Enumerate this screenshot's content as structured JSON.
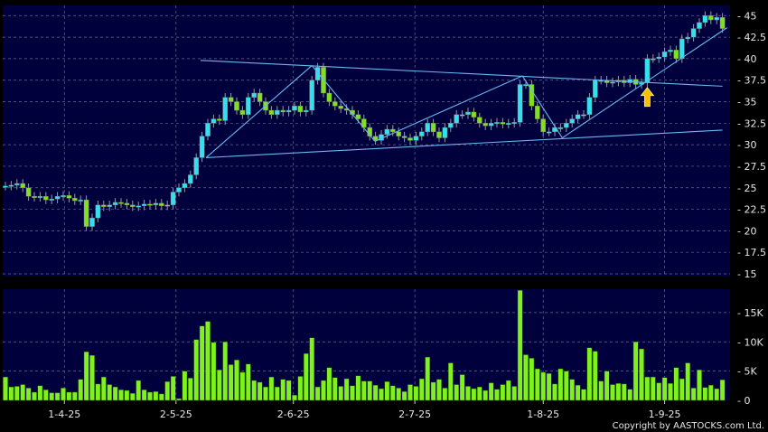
{
  "chart_data": [
    {
      "type": "candlestick",
      "panel": "price",
      "ylim": [
        15,
        46.5
      ],
      "yticks": [
        "15",
        "17.5",
        "20",
        "22.5",
        "25",
        "27.5",
        "30",
        "32.5",
        "35",
        "37.5",
        "40",
        "42.5",
        "45"
      ],
      "ytick_values": [
        15,
        17.5,
        20,
        22.5,
        25,
        27.5,
        30,
        32.5,
        35,
        37.5,
        40,
        42.5,
        45
      ],
      "grid": true,
      "up_color": "#33e0f0",
      "down_color": "#80e020",
      "close": [
        25.2,
        25.3,
        25.5,
        25,
        24,
        23.9,
        24,
        23.6,
        23.7,
        24,
        24.1,
        23.8,
        23.5,
        23.6,
        20.5,
        21.5,
        23,
        22.8,
        23,
        23.3,
        23.2,
        23,
        22.8,
        22.9,
        23.1,
        23,
        23.2,
        22.9,
        23,
        24.5,
        25,
        25.5,
        26.5,
        28.5,
        31,
        32.5,
        33,
        32.8,
        35.5,
        35,
        34,
        33.5,
        35.5,
        36,
        35,
        34,
        33.5,
        34,
        33.8,
        34,
        34.5,
        33.8,
        34,
        37.5,
        39,
        36,
        35,
        34.5,
        34.2,
        34,
        33.5,
        33,
        32,
        31,
        30.5,
        31.2,
        31.8,
        31.5,
        31,
        30.8,
        30.5,
        31,
        31.5,
        32.5,
        31.5,
        30.8,
        32,
        32.5,
        33.5,
        33.5,
        33.8,
        33.2,
        32.5,
        32.2,
        32.5,
        32.6,
        32.4,
        32.5,
        32.6,
        37,
        37,
        34.5,
        33,
        31.5,
        31.5,
        32,
        32,
        32.5,
        33,
        33.5,
        33.5,
        35.5,
        37.5,
        37.5,
        37.2,
        37.3,
        37.5,
        37.2,
        37.6,
        37,
        37.2,
        40,
        40,
        40.2,
        40.8,
        41,
        40,
        42.3,
        42.5,
        43.5,
        44.2,
        45,
        44.5,
        44.8,
        43.5
      ],
      "trendlines": [
        {
          "from": [
            33.75,
            39.8
          ],
          "to": [
            124,
            36.8
          ]
        },
        {
          "from": [
            34.7,
            28.5
          ],
          "to": [
            124,
            31.7
          ]
        },
        {
          "from": [
            34.7,
            28.5
          ],
          "to": [
            53,
            39.2
          ]
        },
        {
          "from": [
            53,
            39.2
          ],
          "to": [
            63.9,
            30.4
          ]
        },
        {
          "from": [
            63.9,
            30.4
          ],
          "to": [
            89.4,
            38.0
          ]
        },
        {
          "from": [
            89.4,
            38.0
          ],
          "to": [
            96.3,
            30.8
          ]
        },
        {
          "from": [
            96.3,
            30.8
          ],
          "to": [
            124.8,
            43.6
          ]
        }
      ],
      "trendline_color": "#6ab8f0",
      "signal_arrow": {
        "index": 111,
        "price": 35.5,
        "direction": "up",
        "color": "#f5c000"
      }
    },
    {
      "type": "bar",
      "panel": "volume",
      "ylim": [
        0,
        19
      ],
      "yticks": [
        "0",
        "5K",
        "10K",
        "15K"
      ],
      "ytick_values": [
        0,
        5,
        10,
        15
      ],
      "grid": true,
      "bar_color": "#80f020",
      "values": [
        4.0,
        2.3,
        2.4,
        2.7,
        2.1,
        1.4,
        2.5,
        1.8,
        1.3,
        1.3,
        2.1,
        1.4,
        1.4,
        3.6,
        8.3,
        7.7,
        2.8,
        4.0,
        2.7,
        2.3,
        1.8,
        1.7,
        1.2,
        3.4,
        1.8,
        1.4,
        1.5,
        1.1,
        3.2,
        4.1,
        0.3,
        5.0,
        3.8,
        10.4,
        12.7,
        13.5,
        9.9,
        5.2,
        10.0,
        6.1,
        6.9,
        4.8,
        6.2,
        3.4,
        3.1,
        2.3,
        4.0,
        2.3,
        3.6,
        3.4,
        0.9,
        4.1,
        8.0,
        10.7,
        2.3,
        3.4,
        5.6,
        3.9,
        2.4,
        3.7,
        2.5,
        4.2,
        3.3,
        3.3,
        2.6,
        2.0,
        3.2,
        2.5,
        2.1,
        1.5,
        2.7,
        2.4,
        3.7,
        7.4,
        3.1,
        3.6,
        2.1,
        6.4,
        2.7,
        4.4,
        2.4,
        2.0,
        2.3,
        1.7,
        3.0,
        1.9,
        2.7,
        3.4,
        2.4,
        18.8,
        7.8,
        7.2,
        5.4,
        4.8,
        4.6,
        2.8,
        5.4,
        5.0,
        3.6,
        2.6,
        1.9,
        9.0,
        8.4,
        3.3,
        5.0,
        2.7,
        2.9,
        2.8,
        1.9,
        10.0,
        8.8,
        4.0,
        4.0,
        3.0,
        3.9,
        2.9,
        5.6,
        3.7,
        6.4,
        2.1,
        5.2,
        2.2,
        2.6,
        2.0,
        3.5
      ]
    }
  ],
  "x_axis": {
    "labels": [
      "1-4-25",
      "2-5-25",
      "2-6-25",
      "2-7-25",
      "1-8-25",
      "1-9-25"
    ],
    "label_index": [
      10.2,
      29.5,
      49.8,
      70.8,
      93,
      114
    ]
  },
  "colors": {
    "panel_bg": "#00003c",
    "page_bg": "#000000",
    "grid": "#6a6a8a"
  },
  "copyright": "Copyright by AASTOCKS.com Ltd."
}
